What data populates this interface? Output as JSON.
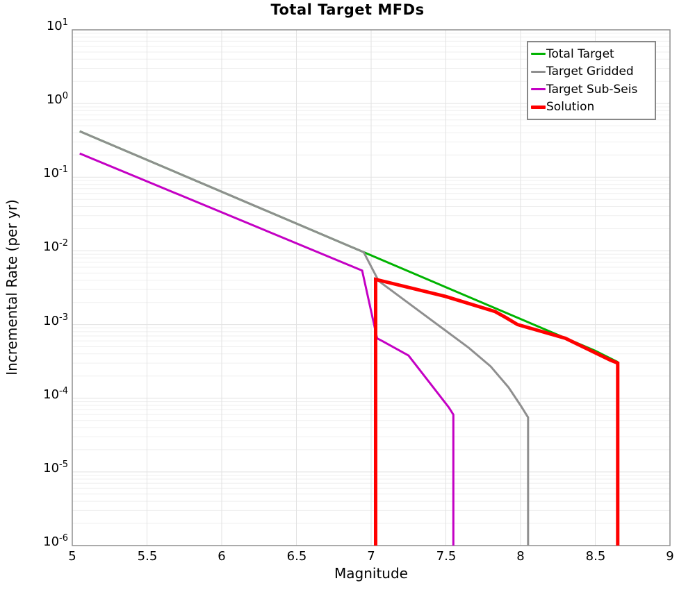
{
  "title": "Total Target MFDs",
  "axes": {
    "xlabel": "Magnitude",
    "ylabel": "Incremental Rate (per yr)",
    "x_tick_values": [
      5,
      5.5,
      6,
      6.5,
      7,
      7.5,
      8,
      8.5,
      9
    ],
    "x_tick_labels": [
      "5",
      "5.5",
      "6",
      "6.5",
      "7",
      "7.5",
      "8",
      "8.5",
      "9"
    ],
    "y_tick_exponents": [
      1,
      0,
      -1,
      -2,
      -3,
      -4,
      -5,
      -6
    ],
    "x_gridlines": [
      5.5,
      6,
      6.5,
      7,
      7.5,
      8,
      8.5
    ]
  },
  "legend": {
    "items": [
      {
        "label": "Total Target",
        "color": "#00b300",
        "swatch_height": 3
      },
      {
        "label": "Target Gridded",
        "color": "#8f8f8f",
        "swatch_height": 3
      },
      {
        "label": "Target Sub-Seis",
        "color": "#c400c4",
        "swatch_height": 3
      },
      {
        "label": "Solution",
        "color": "#ff0000",
        "swatch_height": 5
      }
    ]
  },
  "colors": {
    "background": "#ffffff",
    "spine": "#8f8f8f",
    "grid_major": "#e2e2e2",
    "grid_minor": "#efefef",
    "legend_border": "#878787",
    "text": "#000000"
  },
  "chart_data": {
    "type": "line",
    "title": "Total Target MFDs",
    "xlabel": "Magnitude",
    "ylabel": "Incremental Rate (per yr)",
    "xlim": [
      5,
      9
    ],
    "ylim": [
      1e-06,
      10
    ],
    "yscale": "log",
    "grid": true,
    "legend_position": "upper right",
    "series": [
      {
        "name": "Total Target",
        "color": "#00b300",
        "line_width": 3,
        "points": [
          [
            5.05,
            0.42
          ],
          [
            8.5,
            0.00044
          ],
          [
            8.65,
            0.00031
          ]
        ]
      },
      {
        "name": "Target Gridded",
        "color": "#8f8f8f",
        "line_width": 3,
        "points": [
          [
            5.05,
            0.42
          ],
          [
            6.95,
            0.0096
          ],
          [
            7.05,
            0.0039
          ],
          [
            7.65,
            0.00049
          ],
          [
            7.8,
            0.00027
          ],
          [
            7.92,
            0.00014
          ],
          [
            8.0,
            8e-05
          ],
          [
            8.05,
            5.5e-05
          ],
          [
            8.05,
            1e-06
          ]
        ]
      },
      {
        "name": "Target Sub-Seis",
        "color": "#c400c4",
        "line_width": 3,
        "points": [
          [
            5.05,
            0.21
          ],
          [
            6.94,
            0.0054
          ],
          [
            7.04,
            0.00065
          ],
          [
            7.08,
            0.00059
          ],
          [
            7.25,
            0.00038
          ],
          [
            7.52,
            7.5e-05
          ],
          [
            7.55,
            6e-05
          ],
          [
            7.55,
            1e-06
          ]
        ]
      },
      {
        "name": "Solution",
        "color": "#ff0000",
        "line_width": 5,
        "points": [
          [
            7.03,
            1e-06
          ],
          [
            7.03,
            0.0041
          ],
          [
            7.5,
            0.0024
          ],
          [
            7.83,
            0.0015
          ],
          [
            7.9,
            0.00125
          ],
          [
            7.98,
            0.001
          ],
          [
            8.3,
            0.00065
          ],
          [
            8.6,
            0.00033
          ],
          [
            8.65,
            0.0003
          ],
          [
            8.65,
            1e-06
          ]
        ]
      }
    ]
  }
}
